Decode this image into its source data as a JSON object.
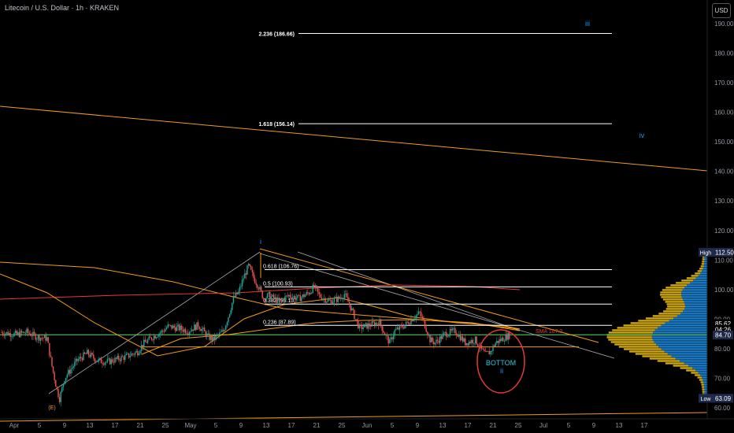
{
  "header": {
    "title": "Litecoin / U.S. Dollar · 1h · KRAKEN",
    "currency_button": "USD"
  },
  "colors": {
    "background": "#000000",
    "candle_up": "#26a69a",
    "candle_down": "#ef5350",
    "ema_orange": "#f39c12",
    "ema_red": "#e53935",
    "green_line": "#4caf50",
    "fib_line": "#ffffff",
    "volume_profile_blue": "#2196f3",
    "volume_profile_yellow": "#f5c518"
  },
  "chart_data": {
    "type": "candlestick",
    "symbol": "Litecoin / U.S. Dollar",
    "interval": "1h",
    "exchange": "KRAKEN",
    "y_range": [
      57,
      197
    ],
    "y_ticks": [
      60,
      70,
      80,
      90,
      100,
      110,
      120,
      130,
      140,
      150,
      160,
      170,
      180,
      190
    ],
    "x_ticks": [
      "Apr",
      "5",
      "9",
      "13",
      "17",
      "21",
      "25",
      "May",
      "5",
      "9",
      "13",
      "17",
      "21",
      "25",
      "Jun",
      "5",
      "9",
      "13",
      "17",
      "21",
      "25",
      "Jul",
      "5",
      "9",
      "13",
      "17"
    ],
    "price_series": [
      {
        "t": 0,
        "p": 85.5
      },
      {
        "t": 3,
        "p": 84.8
      },
      {
        "t": 5,
        "p": 85.6
      },
      {
        "t": 7,
        "p": 84
      },
      {
        "t": 9,
        "p": 83.5
      },
      {
        "t": 10,
        "p": 74
      },
      {
        "t": 11,
        "p": 66
      },
      {
        "t": 11.5,
        "p": 63.1
      },
      {
        "t": 12.5,
        "p": 70
      },
      {
        "t": 13.5,
        "p": 72.5
      },
      {
        "t": 15,
        "p": 76
      },
      {
        "t": 17,
        "p": 78.5
      },
      {
        "t": 19,
        "p": 76
      },
      {
        "t": 21,
        "p": 75.5
      },
      {
        "t": 23,
        "p": 76.5
      },
      {
        "t": 25,
        "p": 77.5
      },
      {
        "t": 27,
        "p": 79
      },
      {
        "t": 28,
        "p": 81.5
      },
      {
        "t": 30,
        "p": 84
      },
      {
        "t": 32,
        "p": 86
      },
      {
        "t": 33,
        "p": 87.5
      },
      {
        "t": 35,
        "p": 87
      },
      {
        "t": 37,
        "p": 86
      },
      {
        "t": 39,
        "p": 88
      },
      {
        "t": 40,
        "p": 86
      },
      {
        "t": 41,
        "p": 84
      },
      {
        "t": 42,
        "p": 83
      },
      {
        "t": 44,
        "p": 86
      },
      {
        "t": 45,
        "p": 91
      },
      {
        "t": 46,
        "p": 97
      },
      {
        "t": 47,
        "p": 99
      },
      {
        "t": 48,
        "p": 104
      },
      {
        "t": 49,
        "p": 108
      },
      {
        "t": 50,
        "p": 104
      },
      {
        "t": 51,
        "p": 101
      },
      {
        "t": 52,
        "p": 97
      },
      {
        "t": 53,
        "p": 98
      },
      {
        "t": 55,
        "p": 96
      },
      {
        "t": 57,
        "p": 98
      },
      {
        "t": 59,
        "p": 97
      },
      {
        "t": 61,
        "p": 99
      },
      {
        "t": 62,
        "p": 101
      },
      {
        "t": 63,
        "p": 98
      },
      {
        "t": 65,
        "p": 96
      },
      {
        "t": 67,
        "p": 97
      },
      {
        "t": 68,
        "p": 98.5
      },
      {
        "t": 69,
        "p": 95
      },
      {
        "t": 70,
        "p": 91
      },
      {
        "t": 71,
        "p": 87
      },
      {
        "t": 73,
        "p": 88
      },
      {
        "t": 75,
        "p": 89
      },
      {
        "t": 76,
        "p": 85
      },
      {
        "t": 77,
        "p": 82
      },
      {
        "t": 78,
        "p": 86
      },
      {
        "t": 80,
        "p": 88
      },
      {
        "t": 82,
        "p": 91
      },
      {
        "t": 83,
        "p": 92
      },
      {
        "t": 84,
        "p": 88
      },
      {
        "t": 85,
        "p": 83
      },
      {
        "t": 86,
        "p": 82
      },
      {
        "t": 88,
        "p": 85
      },
      {
        "t": 90,
        "p": 86
      },
      {
        "t": 91,
        "p": 84
      },
      {
        "t": 92,
        "p": 82
      },
      {
        "t": 94,
        "p": 83
      },
      {
        "t": 95,
        "p": 80
      },
      {
        "t": 96,
        "p": 78
      },
      {
        "t": 97,
        "p": 79
      },
      {
        "t": 98,
        "p": 82
      },
      {
        "t": 99,
        "p": 83
      },
      {
        "t": 100,
        "p": 84
      },
      {
        "t": 101,
        "p": 84.7
      }
    ],
    "fib_levels": [
      {
        "label": "2.236 (186.66)",
        "value": 186.66
      },
      {
        "label": "1.618 (156.14)",
        "value": 156.14
      },
      {
        "label": "0.618 (106.76)",
        "value": 106.76
      },
      {
        "label": "0.5 (100.93)",
        "value": 100.93
      },
      {
        "label": "0.382 (95.10)",
        "value": 95.1
      },
      {
        "label": "0.236 (87.89)",
        "value": 87.89
      }
    ],
    "price_labels": [
      {
        "label": "High",
        "value": "112.50"
      },
      {
        "label": "",
        "value": "85.62"
      },
      {
        "label": "",
        "value": "04:26"
      },
      {
        "label": "",
        "value": "84.70"
      },
      {
        "label": "Low",
        "value": "63.09"
      }
    ],
    "annotations": [
      {
        "text": "(E)",
        "x": "Apr 7",
        "y": 63
      },
      {
        "text": "i",
        "x": "May 12",
        "y": 116
      },
      {
        "text": "iii",
        "x": "Jul 12",
        "y": 190
      },
      {
        "text": "iv",
        "x": "Jul 14",
        "y": 150
      },
      {
        "text": "BOTTOM",
        "x": "Jun 23",
        "y": 76
      },
      {
        "text": "ii",
        "x": "Jun 23",
        "y": 72
      },
      {
        "text": "SMA 107.0",
        "x": "Jun 28",
        "y": 85
      }
    ]
  }
}
